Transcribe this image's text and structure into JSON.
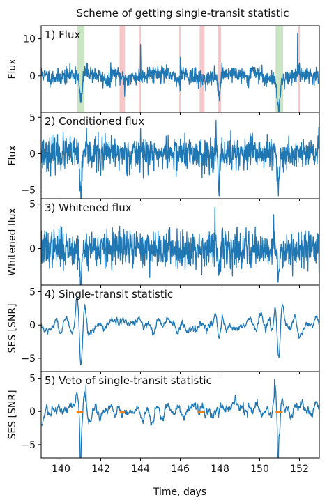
{
  "figure": {
    "title": "Scheme of getting single-transit statistic",
    "xlabel": "Time, days",
    "xlim": [
      139.0,
      153.0
    ],
    "x_ticks": [
      140,
      142,
      144,
      146,
      148,
      150,
      152
    ],
    "colors": {
      "line": "#1f77b4",
      "veto": "#ff7f0e",
      "green_band": "#c9e5c4",
      "red_band": "#f7c6c6"
    }
  },
  "chart_data": [
    {
      "type": "line",
      "panel_label": "1) Flux",
      "ylabel": "Flux",
      "ylim": [
        -9.8,
        13.5
      ],
      "y_ticks": [
        0,
        10
      ],
      "seed": 11,
      "noise": 1.1,
      "baseline": {
        "slope": 0.9,
        "wave": 1.5
      },
      "dips": [
        {
          "x": 141.0,
          "depth": 7.8,
          "width": 0.1
        },
        {
          "x": 147.95,
          "depth": 5.5,
          "width": 0.07
        },
        {
          "x": 150.95,
          "depth": 7.6,
          "width": 0.1
        }
      ],
      "spikes": [
        {
          "x": 144.0,
          "value": 8.5
        },
        {
          "x": 151.9,
          "value": 11.5
        },
        {
          "x": 146.0,
          "value": 5.0
        },
        {
          "x": 143.2,
          "value": -5.5
        }
      ],
      "shaded_regions": [
        {
          "x0": 140.82,
          "x1": 141.18,
          "kind": "green"
        },
        {
          "x0": 150.8,
          "x1": 151.18,
          "kind": "green"
        },
        {
          "x0": 142.95,
          "x1": 143.22,
          "kind": "red"
        },
        {
          "x0": 143.95,
          "x1": 144.02,
          "kind": "red"
        },
        {
          "x0": 145.95,
          "x1": 146.02,
          "kind": "red"
        },
        {
          "x0": 146.98,
          "x1": 147.22,
          "kind": "red"
        },
        {
          "x0": 147.9,
          "x1": 148.05,
          "kind": "red"
        },
        {
          "x0": 151.95,
          "x1": 152.02,
          "kind": "red"
        }
      ]
    },
    {
      "type": "line",
      "panel_label": "2) Conditioned flux",
      "ylabel": "Flux",
      "ylim": [
        -6.2,
        5.7
      ],
      "y_ticks": [
        -5,
        0,
        5
      ],
      "seed": 23,
      "noise": 1.15,
      "baseline": {
        "slope": 0,
        "wave": 0
      },
      "dips": [
        {
          "x": 141.0,
          "depth": 5.5,
          "width": 0.08
        },
        {
          "x": 147.95,
          "depth": 5.5,
          "width": 0.06
        },
        {
          "x": 150.95,
          "depth": 5.0,
          "width": 0.08
        }
      ],
      "spikes": [
        {
          "x": 147.8,
          "value": 4.6
        },
        {
          "x": 144.0,
          "value": 3.5
        },
        {
          "x": 142.0,
          "value": -3.0
        }
      ],
      "shaded_regions": []
    },
    {
      "type": "line",
      "panel_label": "3) Whitened flux",
      "ylabel": "Whitened flux",
      "ylim": [
        -4.1,
        5.6
      ],
      "y_ticks": [
        0,
        5
      ],
      "seed": 37,
      "noise": 1.05,
      "baseline": {
        "slope": 0,
        "wave": 0
      },
      "dips": [
        {
          "x": 141.0,
          "depth": 3.6,
          "width": 0.08
        },
        {
          "x": 147.95,
          "depth": 3.7,
          "width": 0.06
        },
        {
          "x": 150.95,
          "depth": 3.2,
          "width": 0.08
        }
      ],
      "spikes": [
        {
          "x": 147.75,
          "value": 4.6
        },
        {
          "x": 150.7,
          "value": 3.8
        }
      ],
      "shaded_regions": []
    },
    {
      "type": "line",
      "panel_label": "4) Single-transit statistic",
      "ylabel": "SES [SNR]",
      "ylim": [
        -7.0,
        6.0
      ],
      "y_ticks": [
        -5,
        0,
        5
      ],
      "seed": 53,
      "noise": 1.0,
      "smooth": true,
      "baseline": {
        "slope": 0,
        "wave": 0
      },
      "oscillations": [
        {
          "x": 141.0,
          "amplitude": 5.4,
          "period": 0.42,
          "width": 0.28
        },
        {
          "x": 150.95,
          "amplitude": 5.2,
          "period": 0.42,
          "width": 0.28
        },
        {
          "x": 147.95,
          "amplitude": 1.8,
          "period": 0.4,
          "width": 0.22
        }
      ],
      "dips": [],
      "spikes": [],
      "shaded_regions": []
    },
    {
      "type": "line",
      "panel_label": "5) Veto of single-transit statistic",
      "ylabel": "SES [SNR]",
      "ylim": [
        -7.0,
        6.0
      ],
      "y_ticks": [
        -5,
        0,
        5
      ],
      "seed": 71,
      "noise": 1.15,
      "smooth": true,
      "baseline": {
        "slope": 0,
        "wave": 0
      },
      "oscillations": [
        {
          "x": 141.0,
          "amplitude": 4.0,
          "period": 0.4,
          "width": 0.25
        },
        {
          "x": 150.95,
          "amplitude": 4.2,
          "period": 0.4,
          "width": 0.25
        }
      ],
      "dips": [
        {
          "x": 140.98,
          "depth": 6.0,
          "width": 0.03
        },
        {
          "x": 150.92,
          "depth": 6.3,
          "width": 0.03
        }
      ],
      "spikes": [
        {
          "x": 141.25,
          "value": 4.0
        },
        {
          "x": 150.75,
          "value": 4.8
        }
      ],
      "veto_segments": [
        {
          "x0": 140.78,
          "x1": 141.1,
          "y": -0.1
        },
        {
          "x0": 142.95,
          "x1": 143.2,
          "y": -0.1
        },
        {
          "x0": 146.9,
          "x1": 147.2,
          "y": -0.1
        },
        {
          "x0": 150.8,
          "x1": 151.15,
          "y": -0.1
        }
      ],
      "shaded_regions": []
    }
  ]
}
